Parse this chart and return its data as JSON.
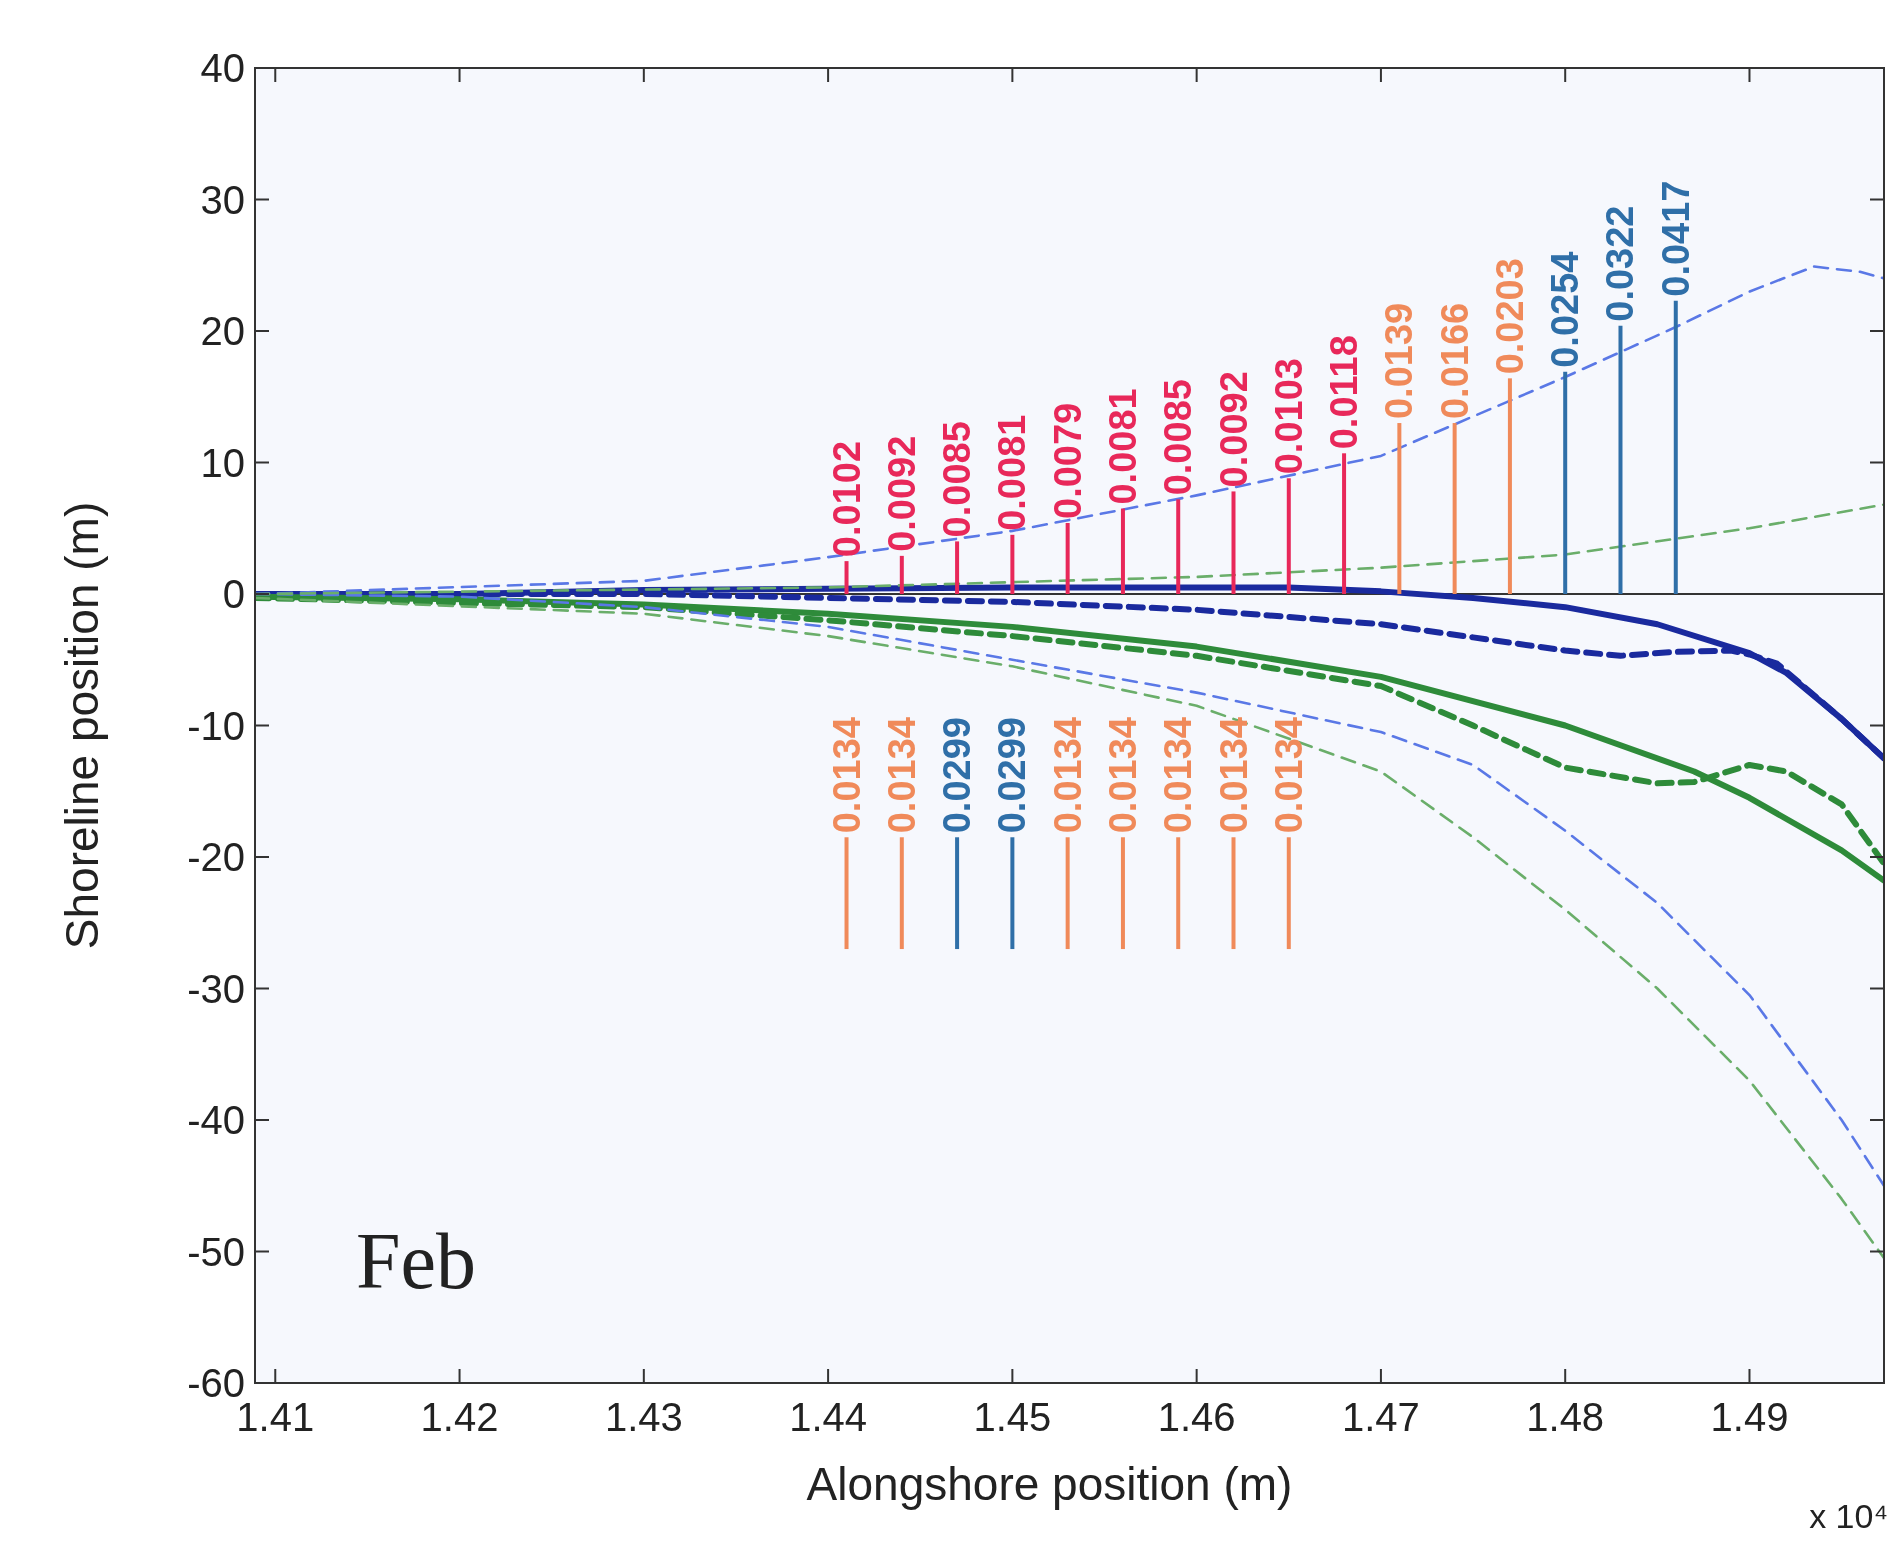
{
  "chart_data": {
    "type": "line",
    "xlabel": "Alongshore position (m)",
    "ylabel": "Shoreline position (m)",
    "xlim": [
      1.4089,
      1.4973
    ],
    "xticks": [
      1.41,
      1.42,
      1.43,
      1.44,
      1.45,
      1.46,
      1.47,
      1.48,
      1.49
    ],
    "ylim": [
      -60,
      40
    ],
    "yticks": [
      -60,
      -50,
      -40,
      -30,
      -20,
      -10,
      0,
      10,
      20,
      30,
      40
    ],
    "grid": false,
    "series": [
      {
        "color": "#1a2a9e",
        "line_style": "solid",
        "x": [
          1.4089,
          1.42,
          1.43,
          1.44,
          1.45,
          1.46,
          1.465,
          1.47,
          1.475,
          1.48,
          1.485,
          1.49,
          1.492,
          1.495,
          1.4973
        ],
        "values": [
          0,
          0,
          0.3,
          0.4,
          0.5,
          0.5,
          0.5,
          0.2,
          -0.3,
          -1,
          -2.3,
          -4.5,
          -6,
          -9.5,
          -12.5
        ]
      },
      {
        "color": "#1a2a9e",
        "line_style": "dashed",
        "x": [
          1.4089,
          1.43,
          1.44,
          1.45,
          1.46,
          1.47,
          1.475,
          1.48,
          1.483,
          1.486,
          1.489,
          1.49,
          1.4915,
          1.495,
          1.4973
        ],
        "values": [
          0,
          0,
          -0.3,
          -0.6,
          -1.2,
          -2.3,
          -3.3,
          -4.3,
          -4.7,
          -4.4,
          -4.3,
          -4.6,
          -5.3,
          -9.5,
          -12.5
        ]
      },
      {
        "color": "#2e8b3a",
        "line_style": "solid",
        "x": [
          1.4089,
          1.42,
          1.43,
          1.44,
          1.45,
          1.46,
          1.47,
          1.48,
          1.487,
          1.49,
          1.495,
          1.4973
        ],
        "values": [
          -0.2,
          -0.4,
          -0.8,
          -1.5,
          -2.5,
          -4,
          -6.3,
          -10,
          -13.5,
          -15.5,
          -19.5,
          -21.8
        ]
      },
      {
        "color": "#2e8b3a",
        "line_style": "dashed",
        "x": [
          1.4089,
          1.43,
          1.44,
          1.45,
          1.46,
          1.47,
          1.475,
          1.48,
          1.485,
          1.487,
          1.49,
          1.492,
          1.495,
          1.4973
        ],
        "values": [
          -0.3,
          -1,
          -2,
          -3.2,
          -4.7,
          -7,
          -10,
          -13.2,
          -14.4,
          -14.3,
          -13,
          -13.5,
          -16,
          -20.5
        ]
      },
      {
        "color": "#5a78e6",
        "line_style": "dashed",
        "x": [
          1.4089,
          1.43,
          1.44,
          1.45,
          1.46,
          1.47,
          1.48,
          1.486,
          1.49,
          1.4935,
          1.496,
          1.4973
        ],
        "values": [
          0,
          1,
          2.8,
          4.8,
          7.5,
          10.5,
          16.5,
          20.3,
          23,
          24.9,
          24.5,
          24
        ]
      },
      {
        "color": "#5a78e6",
        "line_style": "dashed",
        "x": [
          1.4089,
          1.42,
          1.43,
          1.44,
          1.45,
          1.46,
          1.47,
          1.475,
          1.48,
          1.485,
          1.49,
          1.495,
          1.4973
        ],
        "values": [
          0,
          -0.2,
          -1,
          -2.5,
          -5,
          -7.5,
          -10.5,
          -13,
          -18,
          -23.5,
          -30.5,
          -40,
          -45
        ]
      },
      {
        "color": "#6aae6a",
        "line_style": "dashed",
        "x": [
          1.4089,
          1.44,
          1.46,
          1.47,
          1.48,
          1.49,
          1.4973
        ],
        "values": [
          0,
          0.5,
          1.3,
          2,
          3,
          5,
          6.8
        ]
      },
      {
        "color": "#6aae6a",
        "line_style": "dashed",
        "x": [
          1.4089,
          1.43,
          1.44,
          1.45,
          1.46,
          1.47,
          1.475,
          1.48,
          1.485,
          1.49,
          1.495,
          1.4973
        ],
        "values": [
          -0.3,
          -1.5,
          -3.2,
          -5.5,
          -8.5,
          -13.5,
          -18.5,
          -24,
          -30,
          -37,
          -46,
          -50.5
        ]
      },
      {
        "type": "bar",
        "color": "#e8285a",
        "x": [
          1.441,
          1.444,
          1.447,
          1.45,
          1.453,
          1.456,
          1.459,
          1.462,
          1.465,
          1.468
        ],
        "base": [
          0,
          0,
          0,
          0,
          0,
          0,
          0,
          0,
          0,
          0
        ],
        "values": [
          2.5,
          2.9,
          4.0,
          4.5,
          5.4,
          6.5,
          7.2,
          7.8,
          8.8,
          10.7
        ]
      },
      {
        "type": "bar",
        "color": "#f08a5a",
        "x": [
          1.441,
          1.444,
          1.453,
          1.456,
          1.459,
          1.462,
          1.465,
          1.471,
          1.474,
          1.477
        ],
        "base": [
          -27,
          -27,
          -27,
          -27,
          -27,
          -27,
          -27,
          0,
          0,
          0
        ],
        "values": [
          8.5,
          8.5,
          8.5,
          8.5,
          8.5,
          8.5,
          8.5,
          13.0,
          13.0,
          16.4
        ]
      },
      {
        "type": "bar",
        "color": "#2f6fa8",
        "x": [
          1.447,
          1.45,
          1.48,
          1.483,
          1.486
        ],
        "base": [
          -27,
          -27,
          0,
          0,
          0
        ],
        "values": [
          8.5,
          8.5,
          16.9,
          20.4,
          22.3
        ]
      }
    ],
    "ref_lines": [
      {
        "axis": "y",
        "value": 0,
        "color": "#333333",
        "line_style": "solid"
      }
    ],
    "annotations": [
      "Feb",
      "x 10⁴",
      {
        "text": "0.0102",
        "x": 1.441,
        "y": 2.5
      },
      {
        "text": "0.0092",
        "x": 1.444,
        "y": 2.9
      },
      {
        "text": "0.0085",
        "x": 1.447,
        "y": 4.0
      },
      {
        "text": "0.0081",
        "x": 1.45,
        "y": 4.5
      },
      {
        "text": "0.0079",
        "x": 1.453,
        "y": 5.4
      },
      {
        "text": "0.0081",
        "x": 1.456,
        "y": 6.5
      },
      {
        "text": "0.0085",
        "x": 1.459,
        "y": 7.2
      },
      {
        "text": "0.0092",
        "x": 1.462,
        "y": 7.8
      },
      {
        "text": "0.0103",
        "x": 1.465,
        "y": 8.8
      },
      {
        "text": "0.0118",
        "x": 1.468,
        "y": 10.7
      },
      {
        "text": "0.0139",
        "x": 1.471,
        "y": 13.0
      },
      {
        "text": "0.0166",
        "x": 1.474,
        "y": 13.0
      },
      {
        "text": "0.0203",
        "x": 1.477,
        "y": 16.4
      },
      {
        "text": "0.0254",
        "x": 1.48,
        "y": 16.9
      },
      {
        "text": "0.0322",
        "x": 1.483,
        "y": 20.4
      },
      {
        "text": "0.0417",
        "x": 1.486,
        "y": 22.3
      },
      {
        "text": "0.0134",
        "x": 1.441,
        "y": -18.5
      },
      {
        "text": "0.0134",
        "x": 1.444,
        "y": -18.5
      },
      {
        "text": "0.0299",
        "x": 1.447,
        "y": -18.5
      },
      {
        "text": "0.0299",
        "x": 1.45,
        "y": -18.5
      },
      {
        "text": "0.0134",
        "x": 1.453,
        "y": -18.5
      },
      {
        "text": "0.0134",
        "x": 1.456,
        "y": -18.5
      },
      {
        "text": "0.0134",
        "x": 1.459,
        "y": -18.5
      },
      {
        "text": "0.0134",
        "x": 1.462,
        "y": -18.5
      },
      {
        "text": "0.0134",
        "x": 1.465,
        "y": -18.5
      }
    ]
  }
}
